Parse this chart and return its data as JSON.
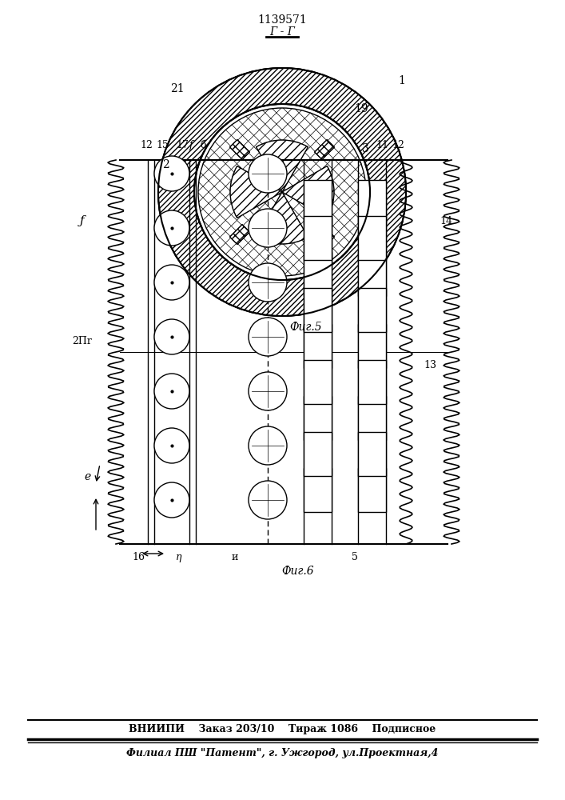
{
  "title": "1139571",
  "section_label": "Г - Г",
  "fig5_label": "Фиг.5",
  "fig6_label": "Фиг.6",
  "footer_line1": "ВНИИПИ    Заказ 203/10    Тираж 1086    Подписное",
  "footer_line2": "Филиал ПШ \"Патент\", г. Ужгород, ул.Проектная,4",
  "bg_color": "#ffffff",
  "line_color": "#000000",
  "hatch_color": "#000000"
}
